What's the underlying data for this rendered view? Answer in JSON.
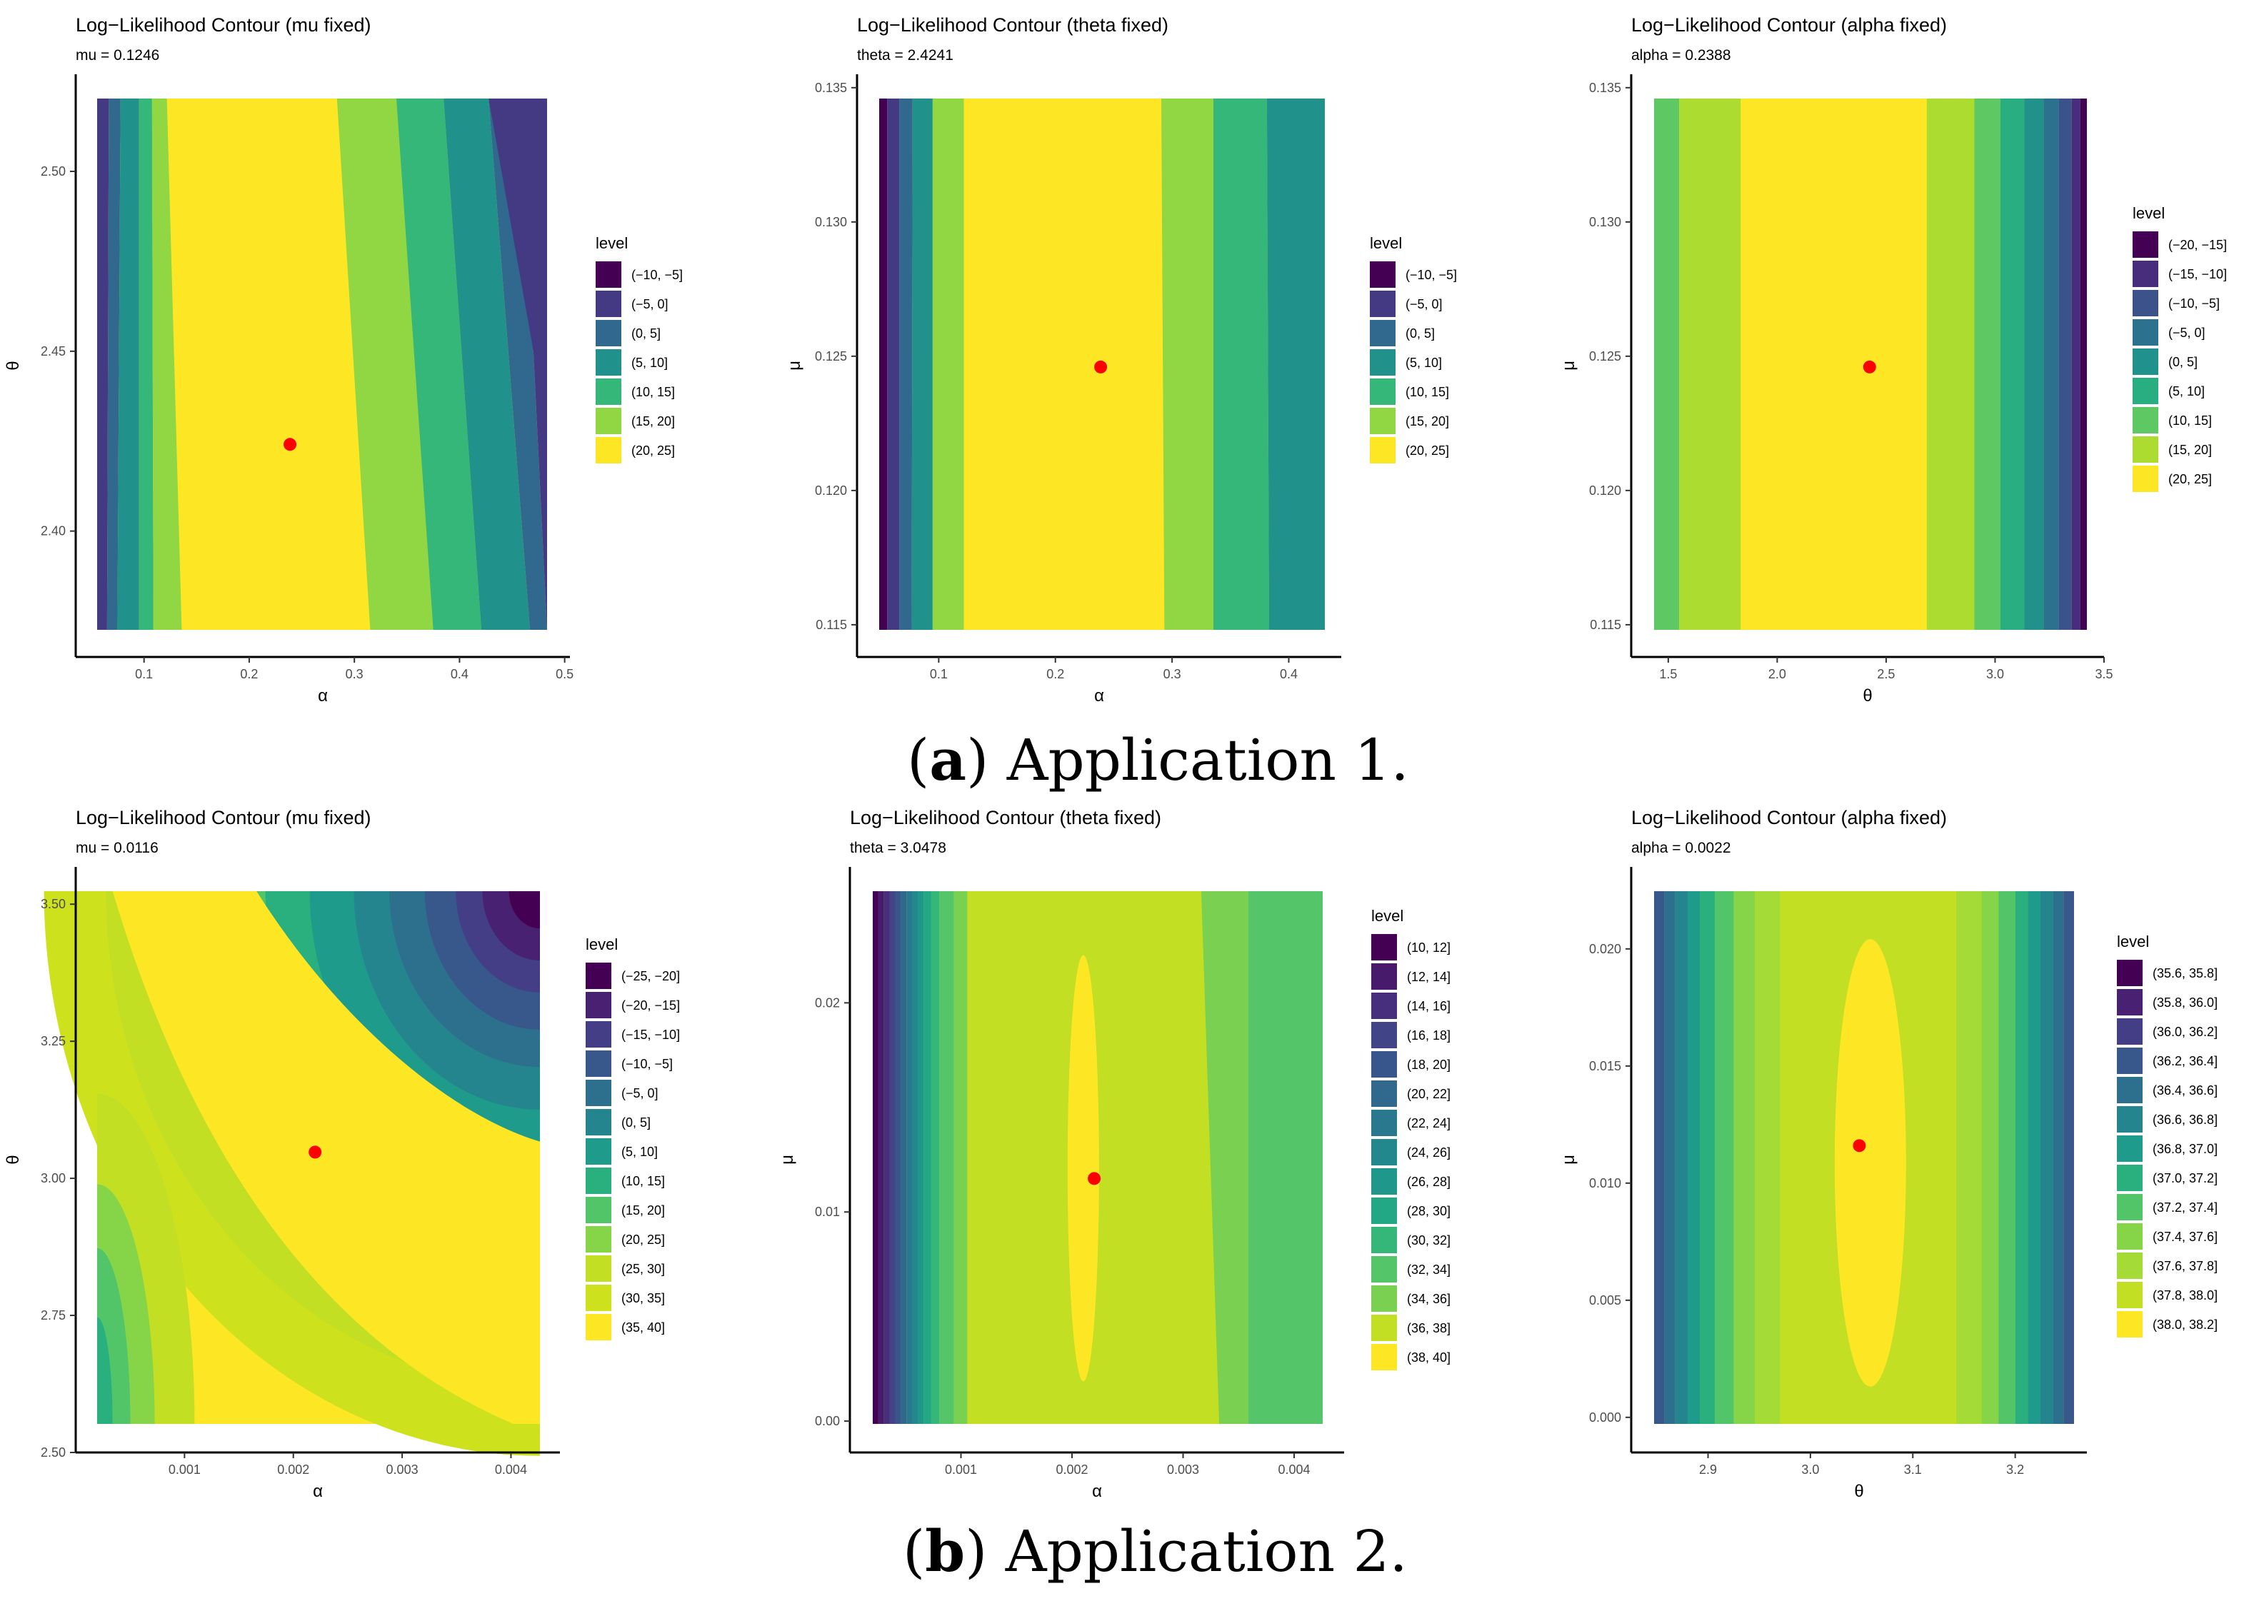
{
  "legend_title": "level",
  "captions": [
    {
      "label": "a",
      "text": "Application 1."
    },
    {
      "label": "b",
      "text": "Application 2."
    }
  ],
  "chart_data": [
    {
      "type": "contour",
      "title": "Log−Likelihood Contour (mu fixed)",
      "subtitle": "mu = 0.1246",
      "xlabel": "α",
      "ylabel": "θ",
      "xlim": [
        0.035,
        0.505
      ],
      "ylim": [
        2.365,
        2.527
      ],
      "xticks": [
        "0.1",
        "0.2",
        "0.3",
        "0.4",
        "0.5"
      ],
      "yticks": [
        "2.40",
        "2.45",
        "2.50"
      ],
      "point": [
        0.2388,
        2.4241
      ],
      "levels": [
        "(−10, −5]",
        "(−5, 0]",
        "(0, 5]",
        "(5, 10]",
        "(10, 15]",
        "(15, 20]",
        "(20, 25]"
      ],
      "colors": [
        "#440154",
        "#443983",
        "#31688e",
        "#21918c",
        "#35b779",
        "#90d743",
        "#fde725"
      ]
    },
    {
      "type": "contour",
      "title": "Log−Likelihood Contour (theta fixed)",
      "subtitle": "theta = 2.4241",
      "xlabel": "α",
      "ylabel": "μ",
      "xlim": [
        0.03,
        0.445
      ],
      "ylim": [
        0.1138,
        0.1355
      ],
      "xticks": [
        "0.1",
        "0.2",
        "0.3",
        "0.4"
      ],
      "yticks": [
        "0.115",
        "0.120",
        "0.125",
        "0.130",
        "0.135"
      ],
      "point": [
        0.2388,
        0.1246
      ],
      "levels": [
        "(−10, −5]",
        "(−5, 0]",
        "(0, 5]",
        "(5, 10]",
        "(10, 15]",
        "(15, 20]",
        "(20, 25]"
      ],
      "colors": [
        "#440154",
        "#443983",
        "#31688e",
        "#21918c",
        "#35b779",
        "#90d743",
        "#fde725"
      ]
    },
    {
      "type": "contour",
      "title": "Log−Likelihood Contour (alpha fixed)",
      "subtitle": "alpha = 0.2388",
      "xlabel": "θ",
      "ylabel": "μ",
      "xlim": [
        1.33,
        3.5
      ],
      "ylim": [
        0.1138,
        0.1355
      ],
      "xticks": [
        "1.5",
        "2.0",
        "2.5",
        "3.0",
        "3.5"
      ],
      "yticks": [
        "0.115",
        "0.120",
        "0.125",
        "0.130",
        "0.135"
      ],
      "point": [
        2.4241,
        0.1246
      ],
      "levels": [
        "(−20, −15]",
        "(−15, −10]",
        "(−10, −5]",
        "(−5, 0]",
        "(0, 5]",
        "(5, 10]",
        "(10, 15]",
        "(15, 20]",
        "(20, 25]"
      ],
      "colors": [
        "#440154",
        "#472d7b",
        "#3b528b",
        "#2c728e",
        "#21918c",
        "#28ae80",
        "#5ec962",
        "#addc30",
        "#fde725"
      ]
    },
    {
      "type": "contour",
      "title": "Log−Likelihood Contour (mu fixed)",
      "subtitle": "mu = 0.0116",
      "xlabel": "α",
      "ylabel": "θ",
      "xlim": [
        0.0,
        0.00445
      ],
      "ylim": [
        2.5,
        3.568
      ],
      "xticks": [
        "0.001",
        "0.002",
        "0.003",
        "0.004"
      ],
      "yticks": [
        "2.50",
        "2.75",
        "3.00",
        "3.25",
        "3.50"
      ],
      "point": [
        0.0022,
        3.0478
      ],
      "levels": [
        "(−25, −20]",
        "(−20, −15]",
        "(−15, −10]",
        "(−10, −5]",
        "(−5, 0]",
        "(0, 5]",
        "(5, 10]",
        "(10, 15]",
        "(15, 20]",
        "(20, 25]",
        "(25, 30]",
        "(30, 35]",
        "(35, 40]"
      ],
      "colors": [
        "#440154",
        "#482173",
        "#433e85",
        "#38588c",
        "#2d708e",
        "#25858e",
        "#1e9b8a",
        "#2ab07f",
        "#52c569",
        "#86d549",
        "#c2df23",
        "#cde11d",
        "#fde725"
      ]
    },
    {
      "type": "contour",
      "title": "Log−Likelihood Contour (theta fixed)",
      "subtitle": "theta = 3.0478",
      "xlabel": "α",
      "ylabel": "μ",
      "xlim": [
        0.0,
        0.00445
      ],
      "ylim": [
        -0.0015,
        0.0265
      ],
      "xticks": [
        "0.001",
        "0.002",
        "0.003",
        "0.004"
      ],
      "yticks": [
        "0.00",
        "0.01",
        "0.02"
      ],
      "point": [
        0.0022,
        0.0116
      ],
      "levels": [
        "(10, 12]",
        "(12, 14]",
        "(14, 16]",
        "(16, 18]",
        "(18, 20]",
        "(20, 22]",
        "(22, 24]",
        "(24, 26]",
        "(26, 28]",
        "(28, 30]",
        "(30, 32]",
        "(32, 34]",
        "(34, 36]",
        "(36, 38]",
        "(38, 40]"
      ],
      "colors": [
        "#440154",
        "#481a6c",
        "#472f7d",
        "#414487",
        "#39568c",
        "#31688e",
        "#2a788e",
        "#23888e",
        "#1f988b",
        "#22a884",
        "#35b779",
        "#54c568",
        "#7ad151",
        "#c2df23",
        "#fde725"
      ]
    },
    {
      "type": "contour",
      "title": "Log−Likelihood Contour (alpha fixed)",
      "subtitle": "alpha = 0.0022",
      "xlabel": "θ",
      "ylabel": "μ",
      "xlim": [
        2.825,
        3.27
      ],
      "ylim": [
        -0.0015,
        0.0235
      ],
      "xticks": [
        "2.9",
        "3.0",
        "3.1",
        "3.2"
      ],
      "yticks": [
        "0.000",
        "0.005",
        "0.010",
        "0.015",
        "0.020"
      ],
      "point": [
        3.0478,
        0.0116
      ],
      "levels": [
        "(35.6, 35.8]",
        "(35.8, 36.0]",
        "(36.0, 36.2]",
        "(36.2, 36.4]",
        "(36.4, 36.6]",
        "(36.6, 36.8]",
        "(36.8, 37.0]",
        "(37.0, 37.2]",
        "(37.2, 37.4]",
        "(37.4, 37.6]",
        "(37.6, 37.8]",
        "(37.8, 38.0]",
        "(38.0, 38.2]"
      ],
      "colors": [
        "#440154",
        "#482173",
        "#433e85",
        "#38588c",
        "#2d708e",
        "#25858e",
        "#1e9b8a",
        "#2ab07f",
        "#52c569",
        "#86d549",
        "#a5db36",
        "#c2df23",
        "#fde725"
      ]
    }
  ]
}
